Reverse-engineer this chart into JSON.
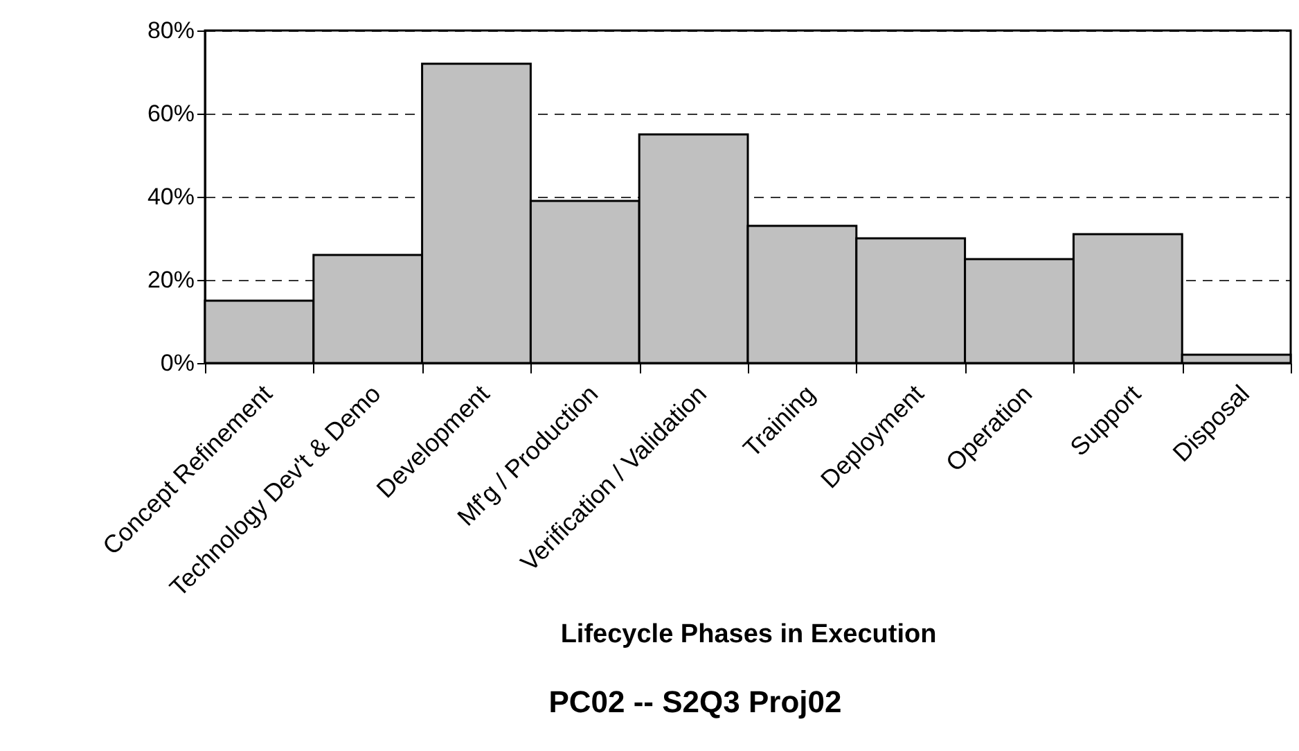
{
  "chart_data": {
    "type": "bar",
    "title": "PC02 -- S2Q3  Proj02",
    "xlabel": "Lifecycle Phases in Execution",
    "categories": [
      "Concept Refinement",
      "Technology Dev't & Demo",
      "Development",
      "Mf'g / Production",
      "Verification / Validation",
      "Training",
      "Deployment",
      "Operation",
      "Support",
      "Disposal"
    ],
    "values": [
      15,
      26,
      72,
      39,
      55,
      33,
      30,
      25,
      31,
      2
    ],
    "color": "#c0c0c0",
    "ylim": [
      0,
      80
    ],
    "yticks": [
      {
        "value": 0,
        "label": "0%"
      },
      {
        "value": 20,
        "label": "20%"
      },
      {
        "value": 40,
        "label": "40%"
      },
      {
        "value": 60,
        "label": "60%"
      },
      {
        "value": 80,
        "label": "80%"
      }
    ],
    "grid": "y"
  }
}
